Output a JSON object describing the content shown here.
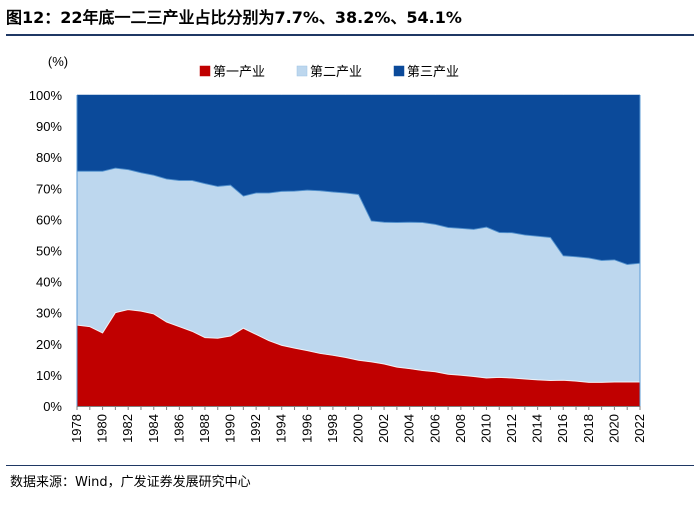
{
  "figure": {
    "title": "图12：22年底一二三产业占比分别为7.7%、38.2%、54.1%",
    "source": "数据来源：Wind，广发证券发展研究中心"
  },
  "chart_data": {
    "type": "area",
    "stacked": true,
    "ylabel": "(%)",
    "ylim": [
      0,
      100
    ],
    "yticks": [
      "0%",
      "10%",
      "20%",
      "30%",
      "40%",
      "50%",
      "60%",
      "70%",
      "80%",
      "90%",
      "100%"
    ],
    "xlim": [
      1978,
      2022
    ],
    "xticks": [
      "1978",
      "1980",
      "1982",
      "1984",
      "1986",
      "1988",
      "1990",
      "1992",
      "1994",
      "1996",
      "1998",
      "2000",
      "2002",
      "2004",
      "2006",
      "2008",
      "2010",
      "2012",
      "2014",
      "2016",
      "2018",
      "2020",
      "2022"
    ],
    "legend_position": "top-center",
    "x": [
      1978,
      1979,
      1980,
      1981,
      1982,
      1983,
      1984,
      1985,
      1986,
      1987,
      1988,
      1989,
      1990,
      1991,
      1992,
      1993,
      1994,
      1995,
      1996,
      1997,
      1998,
      1999,
      2000,
      2001,
      2002,
      2003,
      2004,
      2005,
      2006,
      2007,
      2008,
      2009,
      2010,
      2011,
      2012,
      2013,
      2014,
      2015,
      2016,
      2017,
      2018,
      2019,
      2020,
      2021,
      2022
    ],
    "series": [
      {
        "name": "第一产业",
        "color": "#c00000",
        "values": [
          26.0,
          25.5,
          23.5,
          30.0,
          31.0,
          30.5,
          29.6,
          27.0,
          25.5,
          24.0,
          22.0,
          21.8,
          22.5,
          25.0,
          23.0,
          21.0,
          19.5,
          18.6,
          17.8,
          16.9,
          16.3,
          15.6,
          14.7,
          14.2,
          13.5,
          12.5,
          12.0,
          11.4,
          11.0,
          10.2,
          9.9,
          9.5,
          9.0,
          9.2,
          9.0,
          8.7,
          8.4,
          8.2,
          8.3,
          8.0,
          7.6,
          7.6,
          7.7,
          7.7,
          7.7
        ]
      },
      {
        "name": "第二产业",
        "color": "#bdd7ee",
        "values": [
          49.5,
          50.0,
          52.0,
          46.5,
          45.0,
          44.5,
          44.6,
          46.0,
          47.0,
          48.5,
          49.5,
          48.8,
          48.5,
          42.5,
          45.5,
          47.5,
          49.5,
          50.5,
          51.6,
          52.3,
          52.5,
          52.9,
          53.3,
          45.3,
          45.6,
          46.5,
          47.1,
          47.6,
          47.4,
          47.2,
          47.2,
          47.3,
          48.5,
          46.6,
          46.7,
          46.3,
          46.2,
          46.0,
          40.0,
          40.0,
          40.0,
          39.2,
          39.3,
          37.8,
          38.2
        ]
      },
      {
        "name": "第三产业",
        "color": "#0b4a9a",
        "values": [
          24.5,
          24.5,
          24.5,
          23.5,
          24.0,
          25.0,
          25.8,
          27.0,
          27.5,
          27.5,
          28.5,
          29.4,
          29.0,
          32.5,
          31.5,
          31.5,
          31.0,
          30.9,
          30.6,
          30.8,
          31.2,
          31.5,
          32.0,
          40.5,
          40.9,
          41.0,
          40.9,
          41.0,
          41.6,
          42.6,
          42.9,
          43.2,
          42.5,
          44.2,
          44.3,
          45.0,
          45.4,
          45.8,
          51.7,
          52.0,
          52.4,
          53.2,
          53.0,
          54.5,
          54.1
        ]
      }
    ]
  }
}
